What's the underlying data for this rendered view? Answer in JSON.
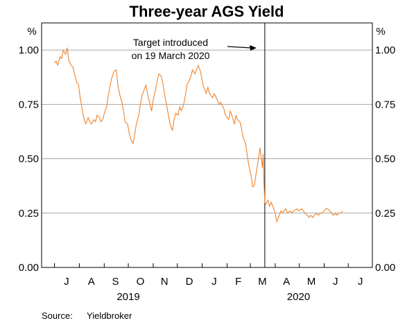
{
  "chart_data": {
    "type": "line",
    "title": "Three-year AGS Yield",
    "unit_left": "%",
    "unit_right": "%",
    "ylim": [
      0,
      1.125
    ],
    "yticks": [
      "0.00",
      "0.25",
      "0.50",
      "0.75",
      "1.00"
    ],
    "ytick_values": [
      0,
      0.25,
      0.5,
      0.75,
      1.0
    ],
    "grid": true,
    "xlim": [
      "2019-06-15",
      "2020-07-31"
    ],
    "x_month_labels": [
      {
        "label": "J",
        "mid": "2019-06-15"
      },
      {
        "label": "J",
        "mid": "2019-07-16"
      },
      {
        "label": "A",
        "mid": "2019-08-16"
      },
      {
        "label": "S",
        "mid": "2019-09-15"
      },
      {
        "label": "O",
        "mid": "2019-10-16"
      },
      {
        "label": "N",
        "mid": "2019-11-15"
      },
      {
        "label": "D",
        "mid": "2019-12-16"
      },
      {
        "label": "J",
        "mid": "2020-01-16"
      },
      {
        "label": "F",
        "mid": "2020-02-15"
      },
      {
        "label": "M",
        "mid": "2020-03-16"
      },
      {
        "label": "A",
        "mid": "2020-04-15"
      },
      {
        "label": "M",
        "mid": "2020-05-16"
      },
      {
        "label": "J",
        "mid": "2020-06-15"
      },
      {
        "label": "J",
        "mid": "2020-07-16"
      }
    ],
    "x_year_labels": [
      {
        "label": "2019",
        "mid": "2019-10-01"
      },
      {
        "label": "2020",
        "mid": "2020-04-30"
      }
    ],
    "annotation": {
      "lines": [
        "Target introduced",
        "on 19 March 2020"
      ],
      "date": "2020-03-19"
    },
    "series": [
      {
        "color": "#f08c3c",
        "points": [
          [
            "2019-07-01",
            0.94
          ],
          [
            "2019-07-03",
            0.95
          ],
          [
            "2019-07-05",
            0.93
          ],
          [
            "2019-07-08",
            0.97
          ],
          [
            "2019-07-10",
            0.96
          ],
          [
            "2019-07-12",
            1.0
          ],
          [
            "2019-07-15",
            0.98
          ],
          [
            "2019-07-17",
            1.01
          ],
          [
            "2019-07-19",
            0.95
          ],
          [
            "2019-07-22",
            0.93
          ],
          [
            "2019-07-24",
            0.92
          ],
          [
            "2019-07-26",
            0.89
          ],
          [
            "2019-07-29",
            0.85
          ],
          [
            "2019-07-31",
            0.84
          ],
          [
            "2019-08-02",
            0.78
          ],
          [
            "2019-08-05",
            0.72
          ],
          [
            "2019-08-07",
            0.68
          ],
          [
            "2019-08-09",
            0.66
          ],
          [
            "2019-08-12",
            0.69
          ],
          [
            "2019-08-14",
            0.67
          ],
          [
            "2019-08-16",
            0.66
          ],
          [
            "2019-08-19",
            0.68
          ],
          [
            "2019-08-21",
            0.67
          ],
          [
            "2019-08-23",
            0.7
          ],
          [
            "2019-08-26",
            0.69
          ],
          [
            "2019-08-28",
            0.67
          ],
          [
            "2019-08-30",
            0.68
          ],
          [
            "2019-09-02",
            0.72
          ],
          [
            "2019-09-04",
            0.74
          ],
          [
            "2019-09-06",
            0.79
          ],
          [
            "2019-09-09",
            0.85
          ],
          [
            "2019-09-11",
            0.88
          ],
          [
            "2019-09-13",
            0.9
          ],
          [
            "2019-09-16",
            0.91
          ],
          [
            "2019-09-18",
            0.84
          ],
          [
            "2019-09-20",
            0.8
          ],
          [
            "2019-09-23",
            0.76
          ],
          [
            "2019-09-25",
            0.72
          ],
          [
            "2019-09-27",
            0.67
          ],
          [
            "2019-09-30",
            0.66
          ],
          [
            "2019-10-02",
            0.62
          ],
          [
            "2019-10-04",
            0.59
          ],
          [
            "2019-10-07",
            0.57
          ],
          [
            "2019-10-09",
            0.61
          ],
          [
            "2019-10-11",
            0.66
          ],
          [
            "2019-10-14",
            0.7
          ],
          [
            "2019-10-16",
            0.75
          ],
          [
            "2019-10-18",
            0.79
          ],
          [
            "2019-10-21",
            0.82
          ],
          [
            "2019-10-23",
            0.84
          ],
          [
            "2019-10-25",
            0.8
          ],
          [
            "2019-10-28",
            0.75
          ],
          [
            "2019-10-30",
            0.72
          ],
          [
            "2019-11-01",
            0.77
          ],
          [
            "2019-11-04",
            0.82
          ],
          [
            "2019-11-06",
            0.86
          ],
          [
            "2019-11-08",
            0.89
          ],
          [
            "2019-11-11",
            0.88
          ],
          [
            "2019-11-13",
            0.85
          ],
          [
            "2019-11-15",
            0.8
          ],
          [
            "2019-11-18",
            0.74
          ],
          [
            "2019-11-20",
            0.7
          ],
          [
            "2019-11-22",
            0.66
          ],
          [
            "2019-11-25",
            0.63
          ],
          [
            "2019-11-27",
            0.68
          ],
          [
            "2019-11-29",
            0.71
          ],
          [
            "2019-12-02",
            0.7
          ],
          [
            "2019-12-04",
            0.74
          ],
          [
            "2019-12-06",
            0.72
          ],
          [
            "2019-12-09",
            0.75
          ],
          [
            "2019-12-11",
            0.79
          ],
          [
            "2019-12-13",
            0.84
          ],
          [
            "2019-12-16",
            0.86
          ],
          [
            "2019-12-18",
            0.88
          ],
          [
            "2019-12-20",
            0.91
          ],
          [
            "2019-12-23",
            0.89
          ],
          [
            "2019-12-27",
            0.93
          ],
          [
            "2019-12-30",
            0.9
          ],
          [
            "2020-01-02",
            0.84
          ],
          [
            "2020-01-06",
            0.8
          ],
          [
            "2020-01-08",
            0.83
          ],
          [
            "2020-01-10",
            0.8
          ],
          [
            "2020-01-14",
            0.78
          ],
          [
            "2020-01-16",
            0.8
          ],
          [
            "2020-01-20",
            0.77
          ],
          [
            "2020-01-22",
            0.75
          ],
          [
            "2020-01-24",
            0.76
          ],
          [
            "2020-01-28",
            0.73
          ],
          [
            "2020-01-30",
            0.7
          ],
          [
            "2020-02-03",
            0.68
          ],
          [
            "2020-02-05",
            0.72
          ],
          [
            "2020-02-07",
            0.7
          ],
          [
            "2020-02-10",
            0.66
          ],
          [
            "2020-02-12",
            0.7
          ],
          [
            "2020-02-14",
            0.68
          ],
          [
            "2020-02-17",
            0.67
          ],
          [
            "2020-02-19",
            0.64
          ],
          [
            "2020-02-21",
            0.6
          ],
          [
            "2020-02-24",
            0.57
          ],
          [
            "2020-02-26",
            0.52
          ],
          [
            "2020-02-28",
            0.47
          ],
          [
            "2020-03-02",
            0.42
          ],
          [
            "2020-03-04",
            0.37
          ],
          [
            "2020-03-06",
            0.38
          ],
          [
            "2020-03-09",
            0.45
          ],
          [
            "2020-03-11",
            0.5
          ],
          [
            "2020-03-13",
            0.55
          ],
          [
            "2020-03-16",
            0.46
          ],
          [
            "2020-03-17",
            0.52
          ],
          [
            "2020-03-18",
            0.38
          ],
          [
            "2020-03-19",
            0.3
          ],
          [
            "2020-03-20",
            0.29
          ],
          [
            "2020-03-23",
            0.31
          ],
          [
            "2020-03-25",
            0.28
          ],
          [
            "2020-03-27",
            0.3
          ],
          [
            "2020-03-30",
            0.27
          ],
          [
            "2020-04-01",
            0.25
          ],
          [
            "2020-04-03",
            0.21
          ],
          [
            "2020-04-06",
            0.24
          ],
          [
            "2020-04-08",
            0.26
          ],
          [
            "2020-04-10",
            0.25
          ],
          [
            "2020-04-14",
            0.27
          ],
          [
            "2020-04-16",
            0.25
          ],
          [
            "2020-04-20",
            0.26
          ],
          [
            "2020-04-22",
            0.25
          ],
          [
            "2020-04-24",
            0.26
          ],
          [
            "2020-04-28",
            0.27
          ],
          [
            "2020-04-30",
            0.26
          ],
          [
            "2020-05-04",
            0.27
          ],
          [
            "2020-05-06",
            0.26
          ],
          [
            "2020-05-08",
            0.25
          ],
          [
            "2020-05-11",
            0.24
          ],
          [
            "2020-05-13",
            0.23
          ],
          [
            "2020-05-15",
            0.24
          ],
          [
            "2020-05-18",
            0.23
          ],
          [
            "2020-05-20",
            0.24
          ],
          [
            "2020-05-22",
            0.25
          ],
          [
            "2020-05-25",
            0.24
          ],
          [
            "2020-05-27",
            0.25
          ],
          [
            "2020-05-29",
            0.25
          ],
          [
            "2020-06-01",
            0.26
          ],
          [
            "2020-06-03",
            0.27
          ],
          [
            "2020-06-05",
            0.27
          ],
          [
            "2020-06-08",
            0.26
          ],
          [
            "2020-06-10",
            0.25
          ],
          [
            "2020-06-12",
            0.24
          ],
          [
            "2020-06-15",
            0.25
          ],
          [
            "2020-06-17",
            0.24
          ],
          [
            "2020-06-19",
            0.25
          ],
          [
            "2020-06-22",
            0.25
          ],
          [
            "2020-06-24",
            0.26
          ]
        ]
      }
    ]
  },
  "source": {
    "label": "Source:",
    "value": "Yieldbroker"
  }
}
